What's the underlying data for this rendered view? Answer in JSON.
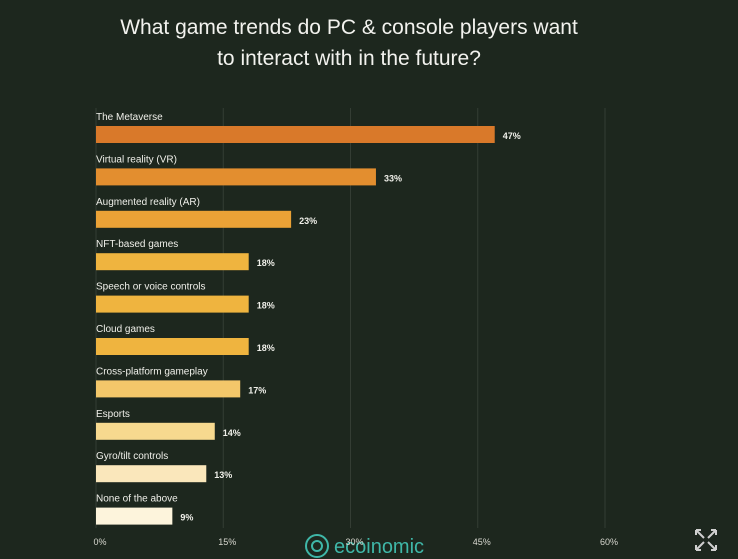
{
  "chart_data": {
    "type": "bar",
    "orientation": "horizontal",
    "title": "What game trends do PC & console players want to interact with in the future?",
    "categories": [
      "The Metaverse",
      "Virtual reality (VR)",
      "Augmented reality (AR)",
      "NFT-based games",
      "Speech or voice controls",
      "Cloud games",
      "Cross-platform gameplay",
      "Esports",
      "Gyro/tilt controls",
      "None of the above"
    ],
    "values": [
      47,
      33,
      23,
      18,
      18,
      18,
      17,
      14,
      13,
      9
    ],
    "value_labels": [
      "47%",
      "33%",
      "23%",
      "18%",
      "18%",
      "18%",
      "17%",
      "14%",
      "13%",
      "9%"
    ],
    "colors": [
      "#d9792a",
      "#e38e2f",
      "#eba236",
      "#efb43f",
      "#efb43f",
      "#efb43f",
      "#f3c76a",
      "#f7d98f",
      "#fae7bb",
      "#fdf4dc"
    ],
    "xlim": [
      0,
      60
    ],
    "xticks": [
      {
        "value": 0,
        "label": "0%"
      },
      {
        "value": 15,
        "label": "15%"
      },
      {
        "value": 30,
        "label": "30%"
      },
      {
        "value": 45,
        "label": "45%"
      },
      {
        "value": 60,
        "label": "60%"
      }
    ],
    "grid": true,
    "watermark": "ecoinomic"
  }
}
